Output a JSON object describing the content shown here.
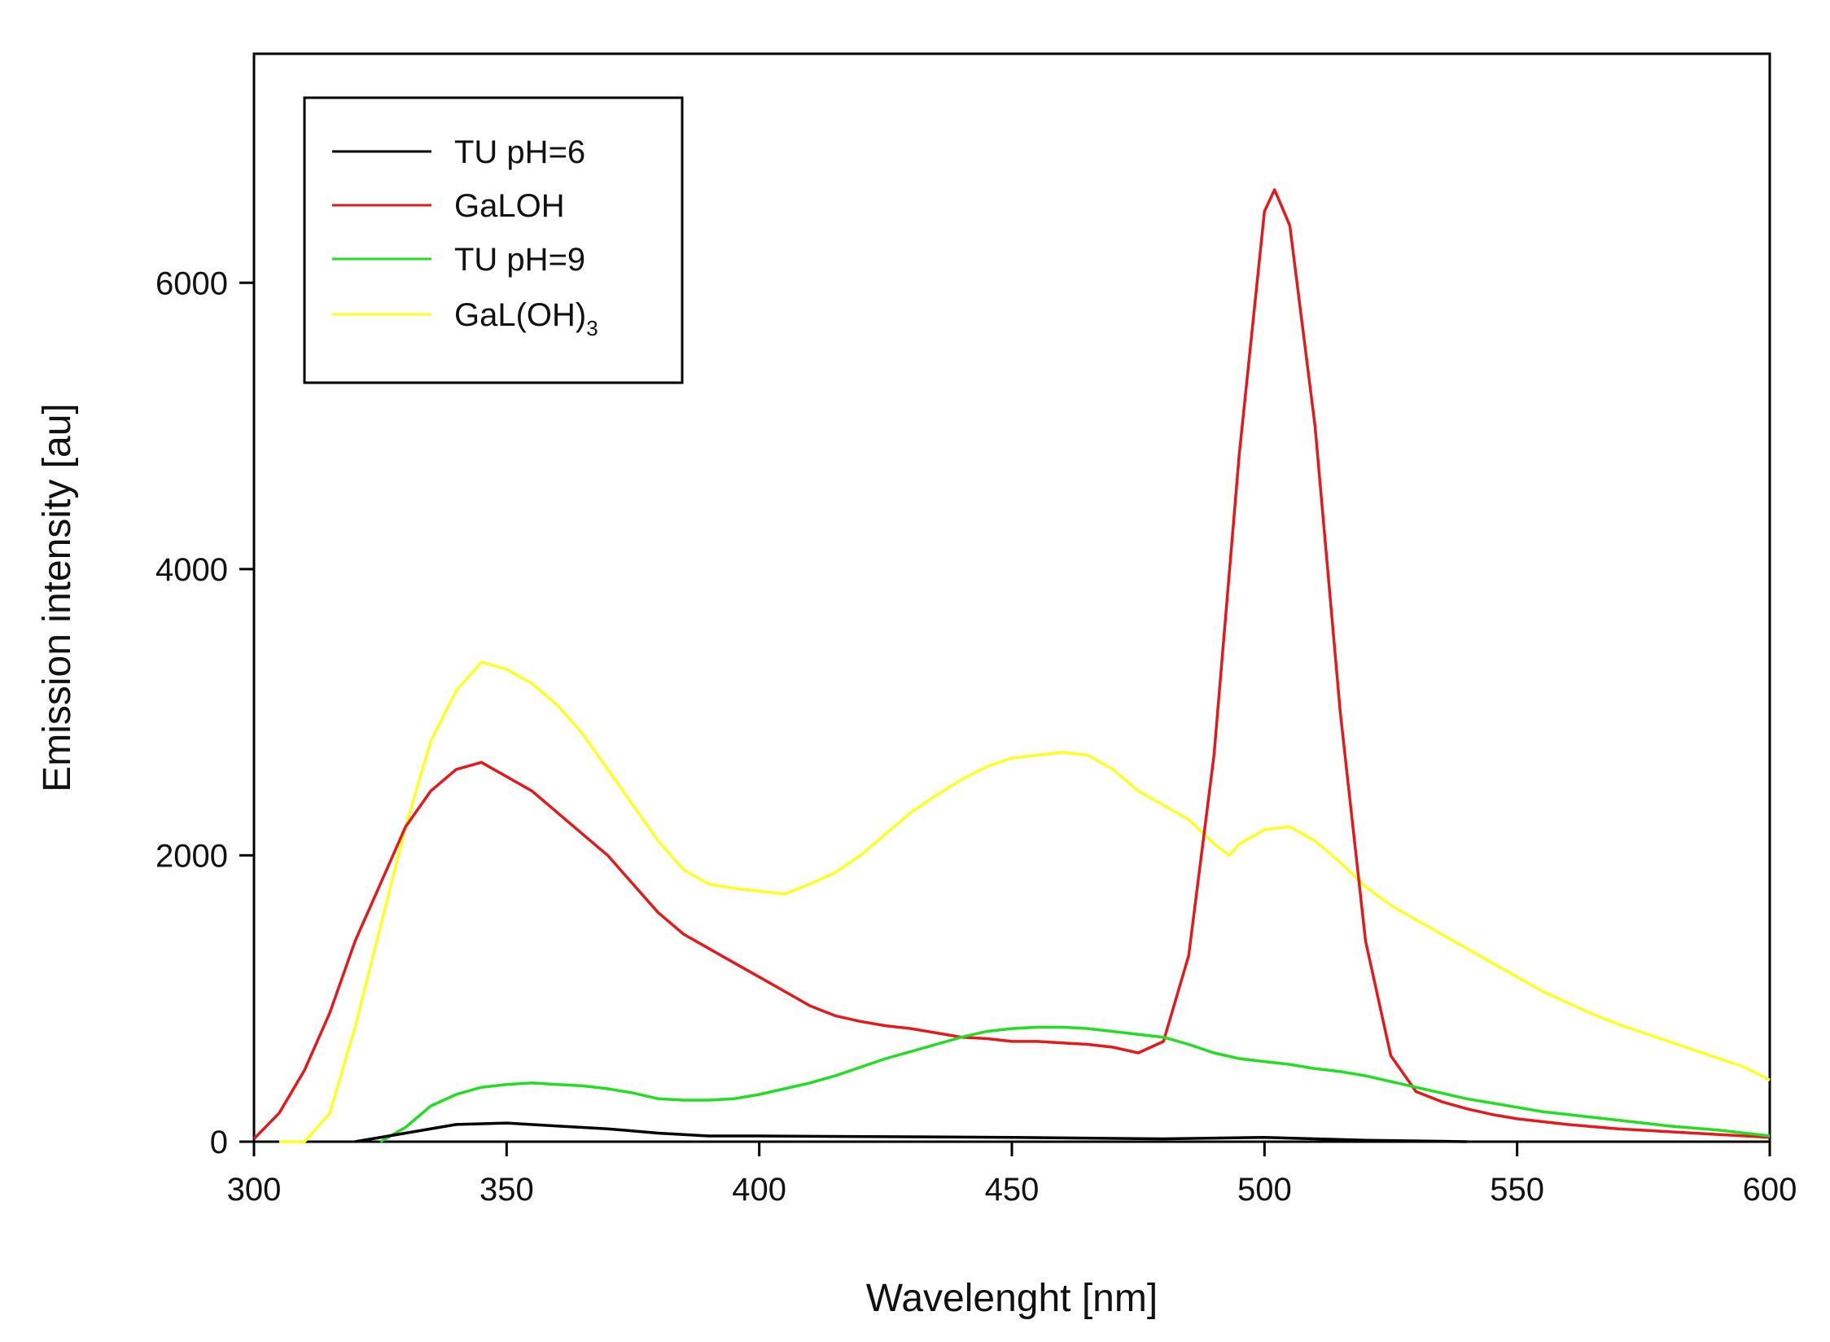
{
  "chart_data": {
    "type": "line",
    "title": "",
    "xlabel": "Wavelenght [nm]",
    "ylabel": "Emission intensity [au]",
    "xlim": [
      300,
      600
    ],
    "ylim": [
      0,
      7600
    ],
    "xticks": [
      300,
      350,
      400,
      450,
      500,
      550,
      600
    ],
    "yticks": [
      0,
      2000,
      4000,
      6000
    ],
    "xtick_labels": [
      "300",
      "350",
      "400",
      "450",
      "500",
      "550",
      "600"
    ],
    "ytick_labels": [
      "0",
      "2000",
      "4000",
      "6000"
    ],
    "legend": {
      "position": "top-left",
      "entries": [
        {
          "label": "TU pH=6",
          "color": "#000000"
        },
        {
          "label": "GaLOH",
          "color": "#e31a1c"
        },
        {
          "label": "TU pH=9",
          "color": "#22dd22"
        },
        {
          "label": "GaL(OH)",
          "subscript": "3",
          "color": "#ffff22"
        }
      ]
    },
    "series": [
      {
        "name": "TU pH=6",
        "color": "#000000",
        "points": [
          [
            320,
            0
          ],
          [
            330,
            60
          ],
          [
            340,
            120
          ],
          [
            350,
            130
          ],
          [
            360,
            110
          ],
          [
            370,
            90
          ],
          [
            380,
            60
          ],
          [
            390,
            40
          ],
          [
            400,
            40
          ],
          [
            450,
            30
          ],
          [
            480,
            20
          ],
          [
            500,
            30
          ],
          [
            510,
            20
          ],
          [
            520,
            10
          ],
          [
            540,
            0
          ]
        ]
      },
      {
        "name": "GaLOH",
        "color": "#e31a1c",
        "points": [
          [
            300,
            20
          ],
          [
            305,
            200
          ],
          [
            310,
            500
          ],
          [
            315,
            900
          ],
          [
            320,
            1400
          ],
          [
            325,
            1800
          ],
          [
            330,
            2200
          ],
          [
            335,
            2450
          ],
          [
            340,
            2600
          ],
          [
            345,
            2650
          ],
          [
            350,
            2550
          ],
          [
            355,
            2450
          ],
          [
            360,
            2300
          ],
          [
            365,
            2150
          ],
          [
            370,
            2000
          ],
          [
            375,
            1800
          ],
          [
            380,
            1600
          ],
          [
            385,
            1450
          ],
          [
            390,
            1350
          ],
          [
            395,
            1250
          ],
          [
            400,
            1150
          ],
          [
            405,
            1050
          ],
          [
            410,
            950
          ],
          [
            415,
            880
          ],
          [
            420,
            840
          ],
          [
            425,
            810
          ],
          [
            430,
            790
          ],
          [
            435,
            760
          ],
          [
            440,
            730
          ],
          [
            445,
            720
          ],
          [
            450,
            700
          ],
          [
            455,
            700
          ],
          [
            460,
            690
          ],
          [
            465,
            680
          ],
          [
            470,
            660
          ],
          [
            475,
            620
          ],
          [
            480,
            700
          ],
          [
            485,
            1300
          ],
          [
            490,
            2700
          ],
          [
            495,
            4800
          ],
          [
            500,
            6500
          ],
          [
            502,
            6650
          ],
          [
            505,
            6400
          ],
          [
            510,
            5000
          ],
          [
            515,
            3000
          ],
          [
            520,
            1400
          ],
          [
            525,
            600
          ],
          [
            530,
            350
          ],
          [
            535,
            280
          ],
          [
            540,
            230
          ],
          [
            545,
            190
          ],
          [
            550,
            160
          ],
          [
            555,
            140
          ],
          [
            560,
            120
          ],
          [
            570,
            90
          ],
          [
            580,
            70
          ],
          [
            590,
            50
          ],
          [
            600,
            30
          ]
        ]
      },
      {
        "name": "TU pH=9",
        "color": "#22dd22",
        "points": [
          [
            325,
            0
          ],
          [
            330,
            100
          ],
          [
            335,
            250
          ],
          [
            340,
            330
          ],
          [
            345,
            380
          ],
          [
            350,
            400
          ],
          [
            355,
            410
          ],
          [
            360,
            400
          ],
          [
            365,
            390
          ],
          [
            370,
            370
          ],
          [
            375,
            340
          ],
          [
            380,
            300
          ],
          [
            385,
            290
          ],
          [
            390,
            290
          ],
          [
            395,
            300
          ],
          [
            400,
            330
          ],
          [
            405,
            370
          ],
          [
            410,
            410
          ],
          [
            415,
            460
          ],
          [
            420,
            520
          ],
          [
            425,
            580
          ],
          [
            430,
            630
          ],
          [
            435,
            680
          ],
          [
            440,
            730
          ],
          [
            445,
            770
          ],
          [
            450,
            790
          ],
          [
            455,
            800
          ],
          [
            460,
            800
          ],
          [
            465,
            790
          ],
          [
            470,
            770
          ],
          [
            475,
            750
          ],
          [
            480,
            730
          ],
          [
            485,
            680
          ],
          [
            490,
            620
          ],
          [
            495,
            580
          ],
          [
            500,
            560
          ],
          [
            505,
            540
          ],
          [
            510,
            510
          ],
          [
            515,
            490
          ],
          [
            520,
            460
          ],
          [
            525,
            420
          ],
          [
            530,
            380
          ],
          [
            535,
            340
          ],
          [
            540,
            300
          ],
          [
            545,
            270
          ],
          [
            550,
            240
          ],
          [
            555,
            210
          ],
          [
            560,
            190
          ],
          [
            570,
            150
          ],
          [
            580,
            110
          ],
          [
            590,
            80
          ],
          [
            600,
            40
          ]
        ]
      },
      {
        "name": "GaL(OH)3",
        "color": "#ffff22",
        "points": [
          [
            305,
            0
          ],
          [
            310,
            0
          ],
          [
            315,
            200
          ],
          [
            320,
            800
          ],
          [
            325,
            1500
          ],
          [
            330,
            2200
          ],
          [
            335,
            2800
          ],
          [
            340,
            3150
          ],
          [
            345,
            3350
          ],
          [
            350,
            3300
          ],
          [
            355,
            3200
          ],
          [
            360,
            3050
          ],
          [
            365,
            2850
          ],
          [
            370,
            2600
          ],
          [
            375,
            2350
          ],
          [
            380,
            2100
          ],
          [
            385,
            1900
          ],
          [
            390,
            1800
          ],
          [
            395,
            1770
          ],
          [
            400,
            1750
          ],
          [
            405,
            1730
          ],
          [
            410,
            1800
          ],
          [
            415,
            1880
          ],
          [
            420,
            2000
          ],
          [
            425,
            2150
          ],
          [
            430,
            2300
          ],
          [
            435,
            2420
          ],
          [
            440,
            2530
          ],
          [
            445,
            2620
          ],
          [
            450,
            2680
          ],
          [
            455,
            2700
          ],
          [
            460,
            2720
          ],
          [
            465,
            2700
          ],
          [
            470,
            2600
          ],
          [
            475,
            2450
          ],
          [
            480,
            2350
          ],
          [
            485,
            2250
          ],
          [
            490,
            2080
          ],
          [
            493,
            2000
          ],
          [
            495,
            2080
          ],
          [
            500,
            2180
          ],
          [
            505,
            2200
          ],
          [
            510,
            2100
          ],
          [
            515,
            1950
          ],
          [
            520,
            1780
          ],
          [
            525,
            1650
          ],
          [
            530,
            1550
          ],
          [
            535,
            1450
          ],
          [
            540,
            1350
          ],
          [
            545,
            1250
          ],
          [
            550,
            1150
          ],
          [
            555,
            1050
          ],
          [
            560,
            970
          ],
          [
            565,
            890
          ],
          [
            570,
            820
          ],
          [
            575,
            760
          ],
          [
            580,
            700
          ],
          [
            585,
            640
          ],
          [
            590,
            580
          ],
          [
            595,
            520
          ],
          [
            600,
            430
          ]
        ]
      }
    ]
  }
}
